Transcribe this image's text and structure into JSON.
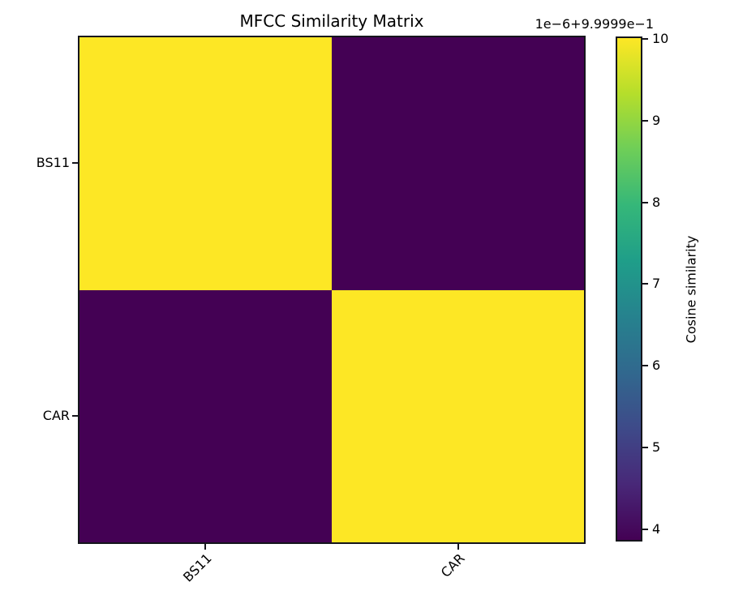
{
  "title": "MFCC Similarity Matrix",
  "colorbar": {
    "offset_text": "1e−6+9.9999e−1",
    "label": "Cosine similarity",
    "ticks": [
      10,
      9,
      8,
      7,
      6,
      5,
      4
    ],
    "gradient_colors": [
      "#440154",
      "#482878",
      "#3e4a89",
      "#31688e",
      "#26828e",
      "#1f9e89",
      "#35b779",
      "#6ece58",
      "#b5de2b",
      "#fde725"
    ]
  },
  "axes": {
    "y_tick_labels": [
      "BS11",
      "CAR"
    ],
    "x_tick_labels": [
      "BS11",
      "CAR"
    ]
  },
  "chart_data": {
    "type": "heatmap",
    "title": "MFCC Similarity Matrix",
    "x_categories": [
      "BS11",
      "CAR"
    ],
    "y_categories": [
      "BS11",
      "CAR"
    ],
    "values": [
      [
        1.0,
        0.9999939
      ],
      [
        0.9999939,
        1.0
      ]
    ],
    "values_note": "colorbar tick scale shown as 1e−6+9.9999e−1 (tick 10 = 1.0, tick 4 ≈ 0.999994)",
    "colorbar_label": "Cosine similarity",
    "colorbar_ticks": [
      4,
      5,
      6,
      7,
      8,
      9,
      10
    ],
    "colormap": "viridis",
    "cell_colors": [
      [
        "#fde725",
        "#440154"
      ],
      [
        "#440154",
        "#fde725"
      ]
    ],
    "legend_position": "colorbar-right",
    "grid": false
  }
}
